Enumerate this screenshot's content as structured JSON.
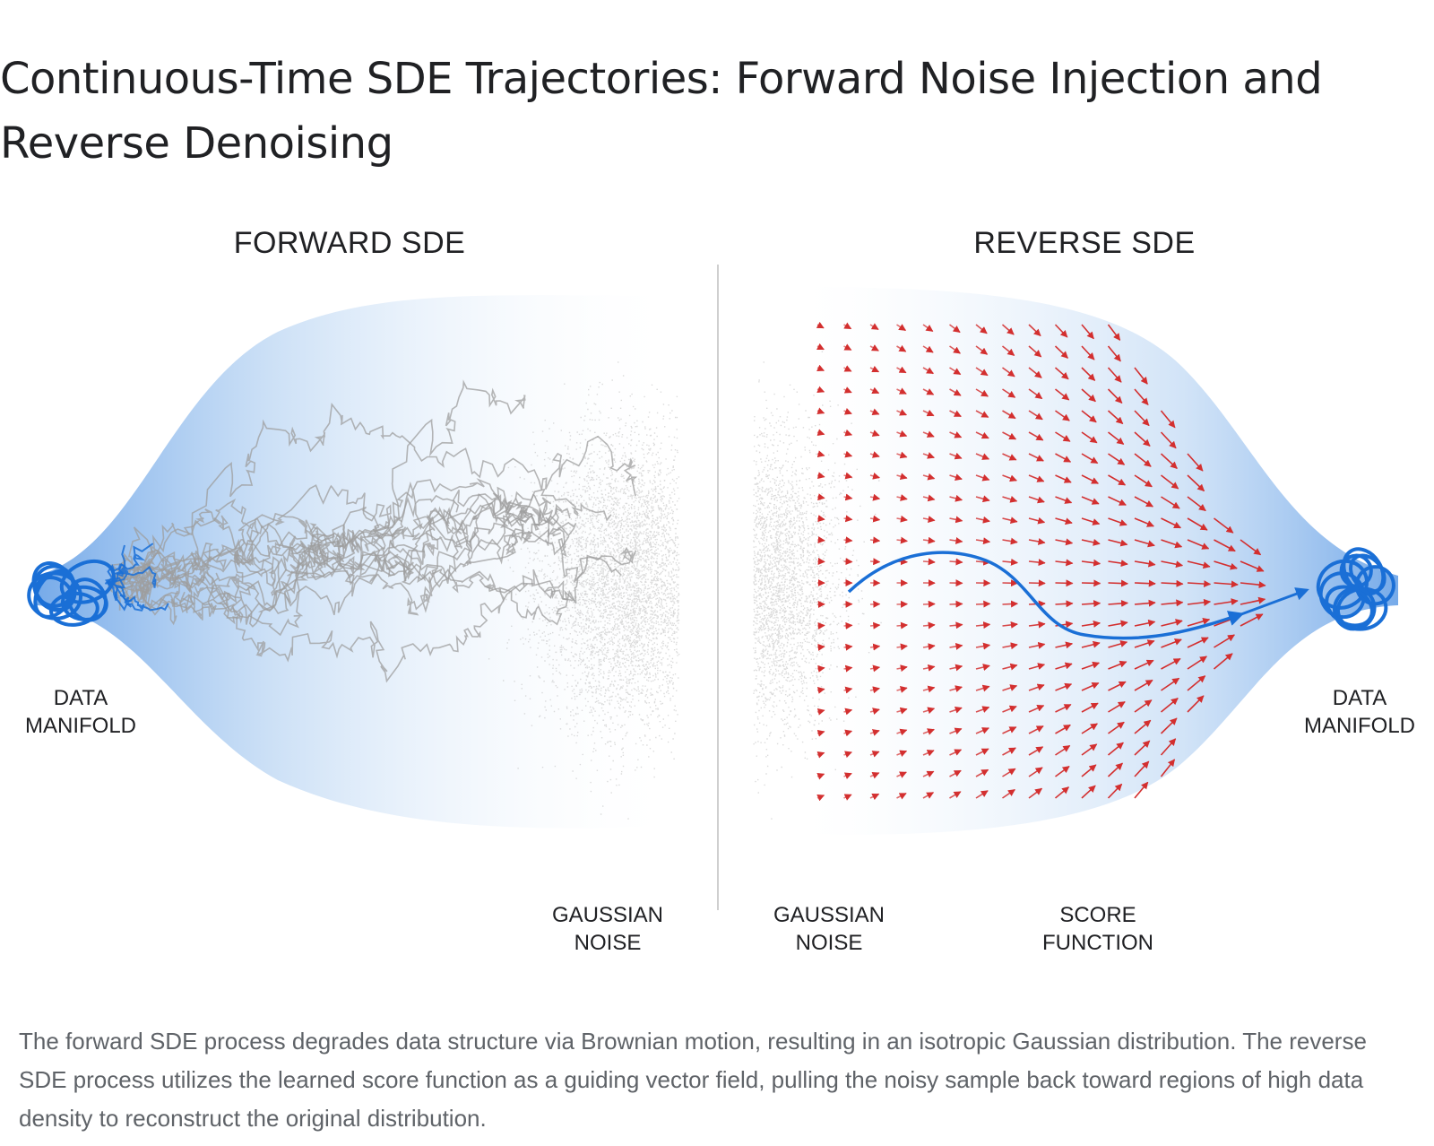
{
  "title": "Continuous-Time SDE Trajectories: Forward Noise Injection and Reverse Denoising",
  "forward": {
    "heading": "FORWARD SDE",
    "data_label": [
      "DATA",
      "MANIFOLD"
    ],
    "noise_label": [
      "GAUSSIAN",
      "NOISE"
    ]
  },
  "reverse": {
    "heading": "REVERSE SDE",
    "noise_label": [
      "GAUSSIAN",
      "NOISE"
    ],
    "score_label": [
      "SCORE",
      "FUNCTION"
    ],
    "data_label": [
      "DATA",
      "MANIFOLD"
    ]
  },
  "caption": "The forward SDE process degrades data structure via Brownian motion, resulting in an isotropic Gaussian distribution. The reverse SDE process utilizes the learned score function as a guiding vector field, pulling the noisy sample back toward regions of high data density to reconstruct the original distribution.",
  "colors": {
    "manifold": "#1a6fd6",
    "funnel": "#9cc3ee",
    "noise": "#bdbdbd",
    "trajectory": "#9e9e9e",
    "vector": "#d32f2f"
  }
}
